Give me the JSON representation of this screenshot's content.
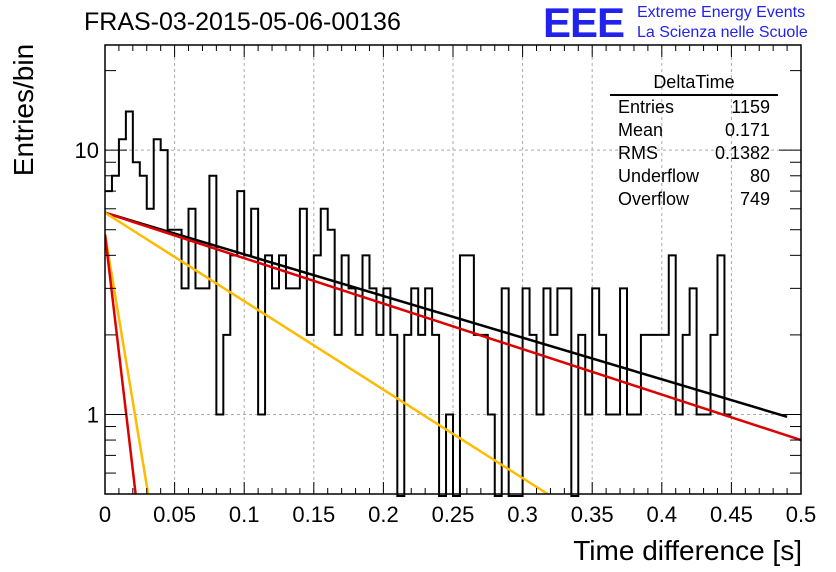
{
  "title": "FRAS-03-2015-05-06-00136",
  "logo": {
    "text": "EEE",
    "line1": "Extreme Energy Events",
    "line2": "La Scienza nelle Scuole"
  },
  "stats": {
    "title": "DeltaTime",
    "rows": [
      {
        "label": "Entries",
        "value": "1159"
      },
      {
        "label": "Mean",
        "value": "0.171"
      },
      {
        "label": "RMS",
        "value": "0.1382"
      },
      {
        "label": "Underflow",
        "value": "80"
      },
      {
        "label": "Overflow",
        "value": "749"
      }
    ]
  },
  "chart_data": {
    "type": "histogram",
    "xlabel": "Time difference [s]",
    "ylabel": "Entries/bin",
    "xlim": [
      0,
      0.5
    ],
    "ylim": [
      0.5,
      25
    ],
    "log_y": true,
    "grid": true,
    "x_ticks": [
      "0",
      "0.05",
      "0.1",
      "0.15",
      "0.2",
      "0.25",
      "0.3",
      "0.35",
      "0.4",
      "0.45",
      "0.5"
    ],
    "y_ticks": [
      "1",
      "10"
    ],
    "bin_width": 0.005,
    "bin_counts": [
      7,
      8,
      11,
      14,
      9,
      8,
      6,
      11,
      10,
      5,
      5,
      3,
      6,
      3,
      3,
      8,
      1,
      2,
      4,
      7,
      4,
      6,
      1,
      4,
      3,
      4,
      3,
      3,
      6,
      2,
      4,
      6,
      5,
      2,
      4,
      3,
      2,
      4,
      3,
      2,
      3,
      2,
      0,
      2,
      3,
      2,
      3,
      2,
      0,
      1,
      0,
      4,
      4,
      2,
      2,
      1,
      0,
      3,
      0,
      0,
      3,
      2,
      1,
      3,
      2,
      3,
      3,
      0,
      2,
      1,
      3,
      2,
      1,
      1,
      3,
      1,
      1,
      2,
      2,
      2,
      2,
      4,
      1,
      2,
      3,
      1,
      1,
      2,
      4,
      1
    ],
    "fits": [
      {
        "color": "#000000",
        "points": [
          [
            0,
            5.8
          ],
          [
            0.49,
            0.98
          ]
        ]
      },
      {
        "color": "#dd0000",
        "points": [
          [
            0,
            5.8
          ],
          [
            0.5,
            0.8
          ]
        ]
      },
      {
        "color": "#ffbb00",
        "points": [
          [
            0,
            5.8
          ],
          [
            0.318,
            0.5
          ]
        ]
      },
      {
        "color": "#ffbb00",
        "points": [
          [
            0,
            4.8
          ],
          [
            0.031,
            0.5
          ]
        ]
      },
      {
        "color": "#dd0000",
        "points": [
          [
            0,
            4.8
          ],
          [
            0.022,
            0.5
          ]
        ]
      }
    ]
  }
}
